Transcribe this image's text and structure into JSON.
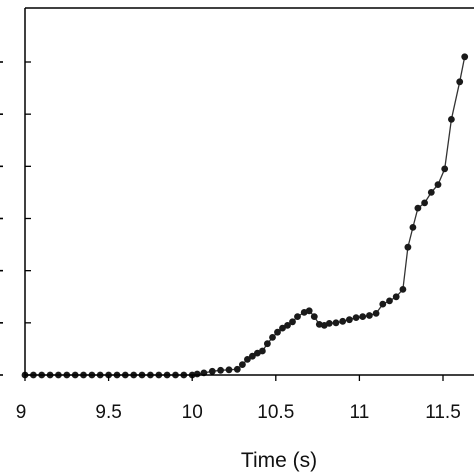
{
  "chart_data": {
    "type": "line",
    "title": "",
    "xlabel": "Time (s)",
    "ylabel": "",
    "xlim": [
      9,
      11.7
    ],
    "ylim": [
      0,
      6.3
    ],
    "x_ticks": [
      9,
      9.5,
      10,
      10.5,
      11,
      11.5
    ],
    "x_tick_labels": [
      "9",
      "9.5",
      "10",
      "10.5",
      "11",
      "11.5"
    ],
    "y_ticks": [
      0,
      1,
      2,
      3,
      4,
      5,
      6
    ],
    "grid": false,
    "legend": "none",
    "colors": {
      "line": "#333333",
      "marker": "#1a1a1a",
      "axis": "#000000"
    },
    "series": [
      {
        "x": [
          9.0,
          9.05,
          9.1,
          9.15,
          9.2,
          9.25,
          9.3,
          9.35,
          9.4,
          9.45,
          9.5,
          9.55,
          9.6,
          9.65,
          9.7,
          9.75,
          9.8,
          9.85,
          9.9,
          9.95,
          10.0,
          10.03,
          10.07,
          10.12,
          10.17,
          10.22,
          10.27,
          10.3,
          10.33,
          10.36,
          10.39,
          10.42,
          10.45,
          10.48,
          10.51,
          10.54,
          10.57,
          10.6,
          10.63,
          10.67,
          10.7,
          10.73,
          10.76,
          10.79,
          10.82,
          10.86,
          10.9,
          10.94,
          10.98,
          11.02,
          11.06,
          11.1,
          11.14,
          11.18,
          11.22,
          11.26,
          11.29,
          11.32,
          11.35,
          11.39,
          11.43,
          11.47,
          11.51,
          11.55,
          11.6,
          11.63
        ],
        "y": [
          0.0,
          0.0,
          0.0,
          0.0,
          0.0,
          0.0,
          0.0,
          0.0,
          0.0,
          0.0,
          0.0,
          0.0,
          0.0,
          0.0,
          0.0,
          0.0,
          0.0,
          0.0,
          0.0,
          0.0,
          0.0,
          0.02,
          0.04,
          0.07,
          0.09,
          0.1,
          0.11,
          0.2,
          0.3,
          0.36,
          0.42,
          0.46,
          0.6,
          0.72,
          0.82,
          0.9,
          0.95,
          1.02,
          1.12,
          1.2,
          1.23,
          1.12,
          0.97,
          0.95,
          0.99,
          1.0,
          1.03,
          1.06,
          1.1,
          1.12,
          1.14,
          1.18,
          1.36,
          1.42,
          1.5,
          1.64,
          2.45,
          2.83,
          3.2,
          3.3,
          3.5,
          3.65,
          3.95,
          4.9,
          5.62,
          6.1
        ]
      }
    ]
  }
}
